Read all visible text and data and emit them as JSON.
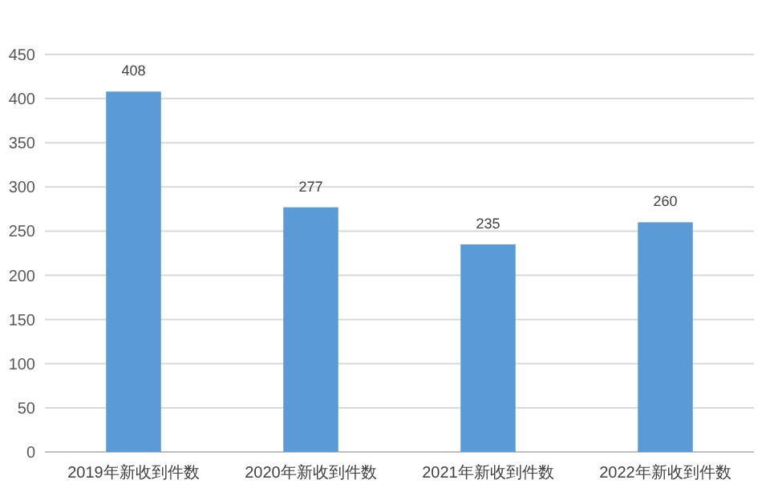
{
  "chart_data": {
    "type": "bar",
    "categories": [
      "2019年新收到件数",
      "2020年新收到件数",
      "2021年新收到件数",
      "2022年新收到件数"
    ],
    "values": [
      408,
      277,
      235,
      260
    ],
    "color": "#5b9bd5",
    "ylim": [
      0,
      450
    ],
    "yticks": [
      0,
      50,
      100,
      150,
      200,
      250,
      300,
      350,
      400,
      450
    ],
    "grid": "y",
    "data_labels": true
  }
}
